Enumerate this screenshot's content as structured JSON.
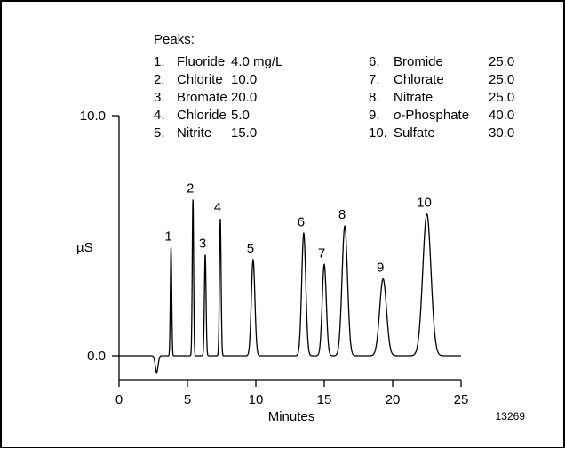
{
  "chart_data": {
    "type": "line",
    "xlabel": "Minutes",
    "ylabel": "µS",
    "figure_id": "13269",
    "xlim": [
      0,
      25
    ],
    "ylim": [
      0,
      10
    ],
    "x_ticks": [
      "0",
      "5",
      "10",
      "15",
      "20",
      "25"
    ],
    "y_ticks": [
      "0.0",
      "10.0"
    ],
    "peaks_heading": "Peaks:",
    "peaks_table": [
      {
        "num": "1.",
        "name": "Fluoride",
        "conc": "4.0 mg/L"
      },
      {
        "num": "2.",
        "name": "Chlorite",
        "conc": "10.0"
      },
      {
        "num": "3.",
        "name": "Bromate",
        "conc": "20.0"
      },
      {
        "num": "4.",
        "name": "Chloride",
        "conc": "5.0"
      },
      {
        "num": "5.",
        "name": "Nitrite",
        "conc": "15.0"
      },
      {
        "num": "6.",
        "name": "Bromide",
        "conc": "25.0"
      },
      {
        "num": "7.",
        "name": "Chlorate",
        "conc": "25.0"
      },
      {
        "num": "8.",
        "name": "Nitrate",
        "conc": "25.0"
      },
      {
        "num": "9.",
        "name": "o-Phosphate",
        "conc": "40.0"
      },
      {
        "num": "10.",
        "name": "Sulfate",
        "conc": "30.0"
      }
    ],
    "dip": {
      "t": 2.75,
      "height": -0.7,
      "width": 0.1
    },
    "peaks": [
      {
        "label": "1",
        "t": 3.8,
        "height": 4.5,
        "width": 0.05
      },
      {
        "label": "2",
        "t": 5.4,
        "height": 6.5,
        "width": 0.05
      },
      {
        "label": "3",
        "t": 6.3,
        "height": 4.2,
        "width": 0.06
      },
      {
        "label": "4",
        "t": 7.4,
        "height": 5.7,
        "width": 0.06
      },
      {
        "label": "5",
        "t": 9.8,
        "height": 4.0,
        "width": 0.13
      },
      {
        "label": "6",
        "t": 13.5,
        "height": 5.1,
        "width": 0.15
      },
      {
        "label": "7",
        "t": 15.0,
        "height": 3.8,
        "width": 0.15
      },
      {
        "label": "8",
        "t": 16.5,
        "height": 5.4,
        "width": 0.2
      },
      {
        "label": "9",
        "t": 19.3,
        "height": 3.2,
        "width": 0.25
      },
      {
        "label": "10",
        "t": 22.5,
        "height": 5.9,
        "width": 0.3
      }
    ]
  }
}
